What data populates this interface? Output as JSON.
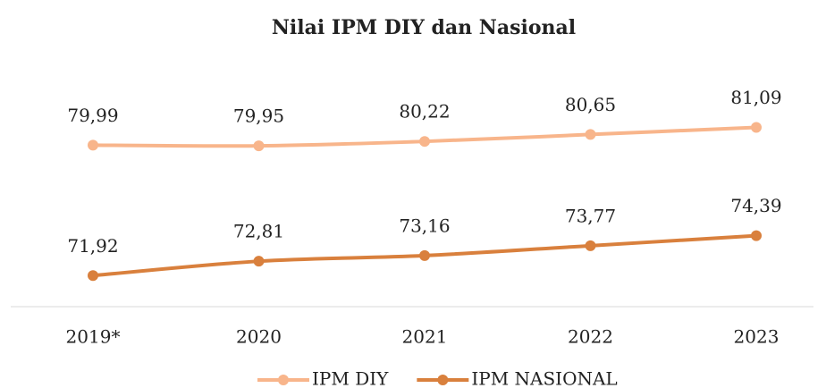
{
  "chart_data": {
    "type": "line",
    "title": "Nilai IPM DIY dan Nasional",
    "categories": [
      "2019*",
      "2020",
      "2021",
      "2022",
      "2023"
    ],
    "series": [
      {
        "name": "IPM DIY",
        "color": "#f8b58b",
        "values": [
          79.99,
          79.95,
          80.22,
          80.65,
          81.09
        ],
        "value_labels": [
          "79,99",
          "79,95",
          "80,22",
          "80,65",
          "81,09"
        ]
      },
      {
        "name": "IPM NASIONAL",
        "color": "#d9803d",
        "values": [
          71.92,
          72.81,
          73.16,
          73.77,
          74.39
        ],
        "value_labels": [
          "71,92",
          "72,81",
          "73,16",
          "73,77",
          "74,39"
        ]
      }
    ],
    "ylim": [
      70,
      82
    ],
    "legend": "bottom"
  }
}
